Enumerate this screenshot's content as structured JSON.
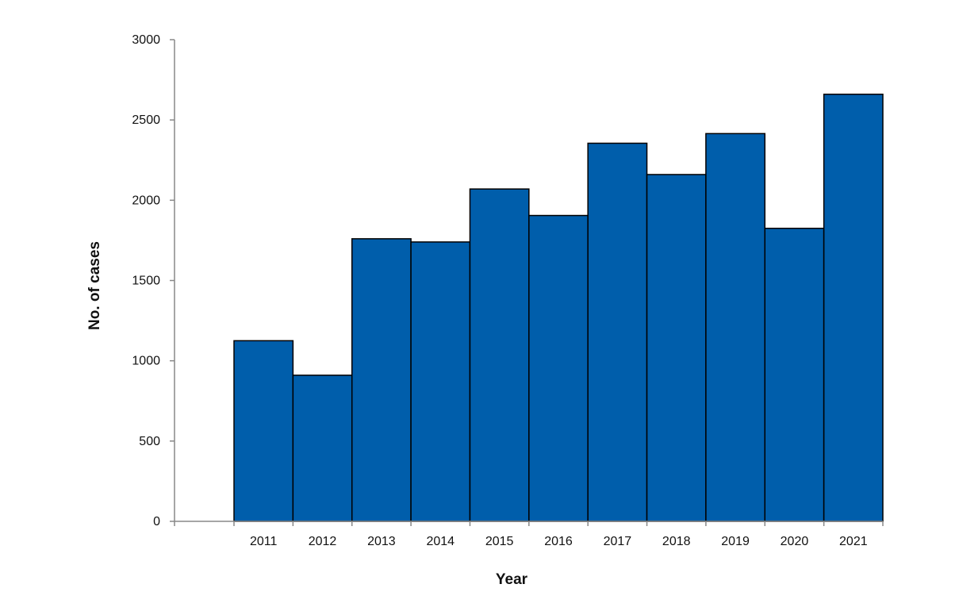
{
  "chart_data": {
    "type": "bar",
    "title": "",
    "xlabel": "Year",
    "ylabel": "No. of cases",
    "categories": [
      "2011",
      "2012",
      "2013",
      "2014",
      "2015",
      "2016",
      "2017",
      "2018",
      "2019",
      "2020",
      "2021"
    ],
    "values": [
      1125,
      910,
      1760,
      1740,
      2070,
      1905,
      2355,
      2160,
      2415,
      1825,
      2660
    ],
    "ylim": [
      0,
      3000
    ],
    "yticks": [
      "0",
      "500",
      "1000",
      "1500",
      "2000",
      "2500",
      "3000"
    ],
    "grid": false,
    "legend": "none",
    "bar_color": "#005EAB",
    "bar_edge_color": "#000000"
  }
}
